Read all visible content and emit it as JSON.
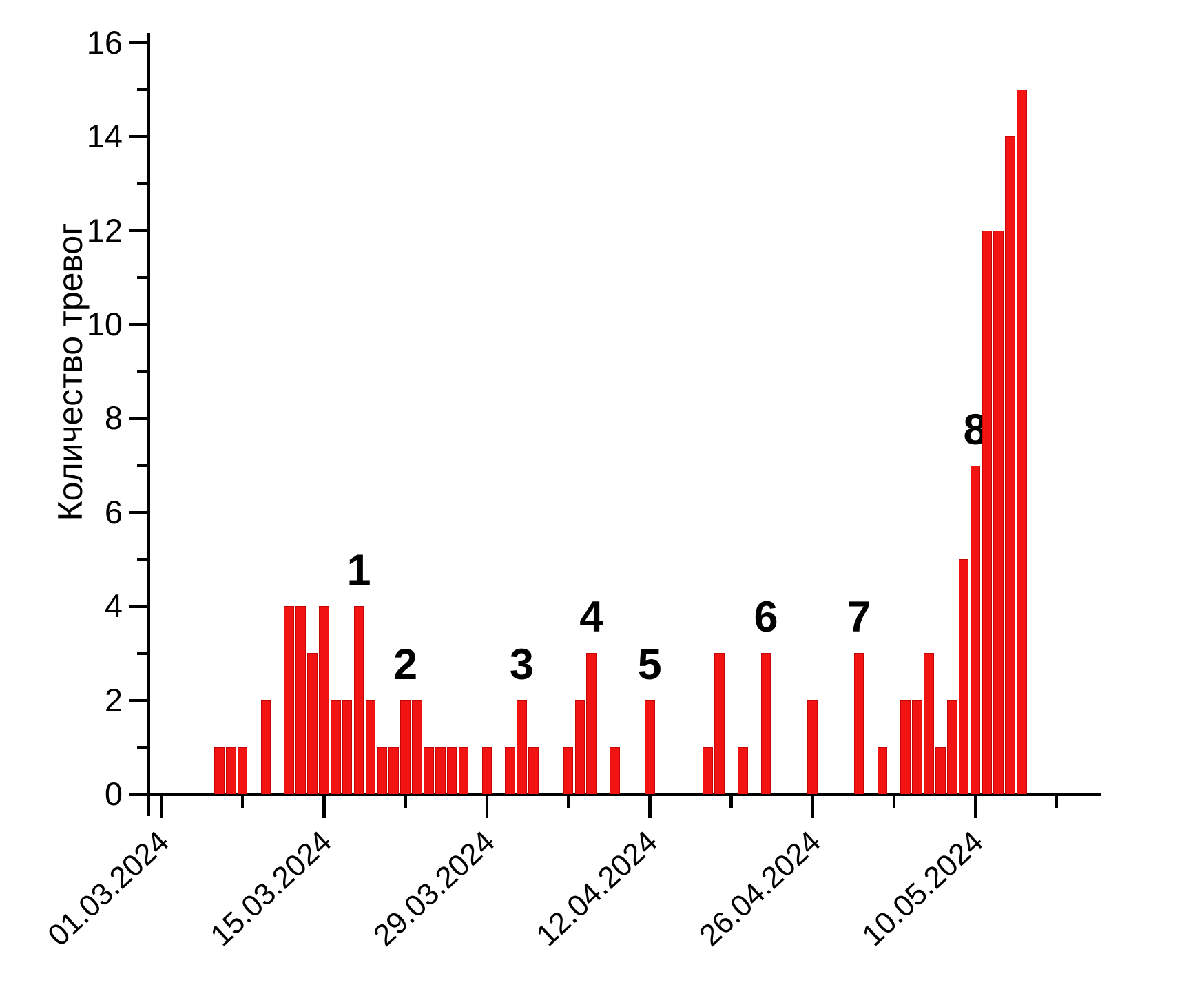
{
  "chart_data": {
    "type": "bar",
    "title": "",
    "xlabel": "",
    "ylabel": "Количество тревог",
    "grid": false,
    "legend": false,
    "ylim": [
      0,
      16
    ],
    "y_axis": {
      "major_ticks": [
        0,
        2,
        4,
        6,
        8,
        10,
        12,
        14,
        16
      ],
      "minor_ticks": [
        1,
        3,
        5,
        7,
        9,
        11,
        13,
        15
      ]
    },
    "x_axis": {
      "major_tick_labels": [
        "01.03.2024",
        "15.03.2024",
        "29.03.2024",
        "12.04.2024",
        "26.04.2024",
        "10.05.2024"
      ],
      "major_tick_day_index": [
        0,
        14,
        28,
        42,
        56,
        70
      ],
      "minor_tick_day_index": [
        7,
        21,
        35,
        49,
        63,
        77
      ]
    },
    "colors": {
      "bar_fill": "#f21313",
      "bar_edge": "#c70404",
      "axis": "#000000",
      "text": "#000000"
    },
    "bars": [
      {
        "date": "06.03.2024",
        "value": 1
      },
      {
        "date": "07.03.2024",
        "value": 1
      },
      {
        "date": "08.03.2024",
        "value": 1
      },
      {
        "date": "10.03.2024",
        "value": 2
      },
      {
        "date": "12.03.2024",
        "value": 4
      },
      {
        "date": "13.03.2024",
        "value": 4
      },
      {
        "date": "14.03.2024",
        "value": 3
      },
      {
        "date": "15.03.2024",
        "value": 4
      },
      {
        "date": "16.03.2024",
        "value": 2
      },
      {
        "date": "17.03.2024",
        "value": 2
      },
      {
        "date": "18.03.2024",
        "value": 4,
        "annotation": "1"
      },
      {
        "date": "19.03.2024",
        "value": 2
      },
      {
        "date": "20.03.2024",
        "value": 1
      },
      {
        "date": "21.03.2024",
        "value": 1
      },
      {
        "date": "22.03.2024",
        "value": 2,
        "annotation": "2"
      },
      {
        "date": "23.03.2024",
        "value": 2
      },
      {
        "date": "24.03.2024",
        "value": 1
      },
      {
        "date": "25.03.2024",
        "value": 1
      },
      {
        "date": "26.03.2024",
        "value": 1
      },
      {
        "date": "27.03.2024",
        "value": 1
      },
      {
        "date": "29.03.2024",
        "value": 1
      },
      {
        "date": "31.03.2024",
        "value": 1
      },
      {
        "date": "01.04.2024",
        "value": 2,
        "annotation": "3"
      },
      {
        "date": "02.04.2024",
        "value": 1
      },
      {
        "date": "05.04.2024",
        "value": 1
      },
      {
        "date": "06.04.2024",
        "value": 2
      },
      {
        "date": "07.04.2024",
        "value": 3,
        "annotation": "4"
      },
      {
        "date": "09.04.2024",
        "value": 1
      },
      {
        "date": "12.04.2024",
        "value": 2,
        "annotation": "5"
      },
      {
        "date": "17.04.2024",
        "value": 1
      },
      {
        "date": "18.04.2024",
        "value": 3
      },
      {
        "date": "20.04.2024",
        "value": 1
      },
      {
        "date": "22.04.2024",
        "value": 3,
        "annotation": "6"
      },
      {
        "date": "26.04.2024",
        "value": 2
      },
      {
        "date": "30.04.2024",
        "value": 3,
        "annotation": "7"
      },
      {
        "date": "02.05.2024",
        "value": 1
      },
      {
        "date": "04.05.2024",
        "value": 2
      },
      {
        "date": "05.05.2024",
        "value": 2
      },
      {
        "date": "06.05.2024",
        "value": 3
      },
      {
        "date": "07.05.2024",
        "value": 1
      },
      {
        "date": "08.05.2024",
        "value": 2
      },
      {
        "date": "09.05.2024",
        "value": 5
      },
      {
        "date": "10.05.2024",
        "value": 7,
        "annotation": "8"
      },
      {
        "date": "11.05.2024",
        "value": 12
      },
      {
        "date": "12.05.2024",
        "value": 12
      },
      {
        "date": "13.05.2024",
        "value": 14
      },
      {
        "date": "14.05.2024",
        "value": 15
      }
    ]
  }
}
